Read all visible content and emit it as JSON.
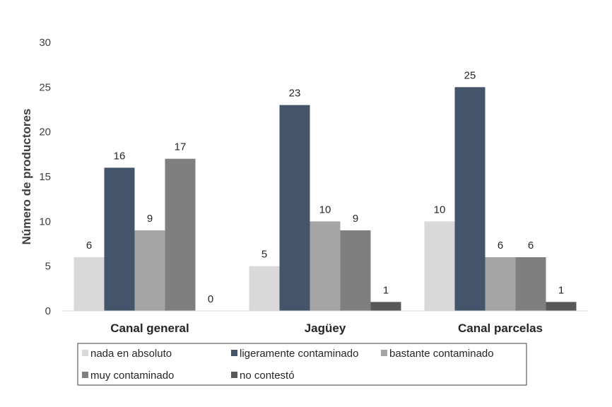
{
  "chart_data": {
    "type": "bar",
    "title": "",
    "xlabel": "",
    "ylabel": "Número de productores",
    "ylim": [
      0,
      30
    ],
    "yticks": [
      0,
      5,
      10,
      15,
      20,
      25,
      30
    ],
    "grid": false,
    "categories": [
      "Canal general",
      "Jagüey",
      "Canal parcelas"
    ],
    "series": [
      {
        "name": "nada en absoluto",
        "color": "#d9d9d9",
        "values": [
          6,
          5,
          10
        ]
      },
      {
        "name": "ligeramente contaminado",
        "color": "#44546a",
        "values": [
          16,
          23,
          25
        ]
      },
      {
        "name": "bastante contaminado",
        "color": "#a5a5a5",
        "values": [
          9,
          10,
          6
        ]
      },
      {
        "name": "muy contaminado",
        "color": "#7f7f7f",
        "values": [
          17,
          9,
          6
        ]
      },
      {
        "name": "no contestó",
        "color": "#595959",
        "values": [
          0,
          1,
          1
        ]
      }
    ],
    "legend_position": "bottom"
  }
}
